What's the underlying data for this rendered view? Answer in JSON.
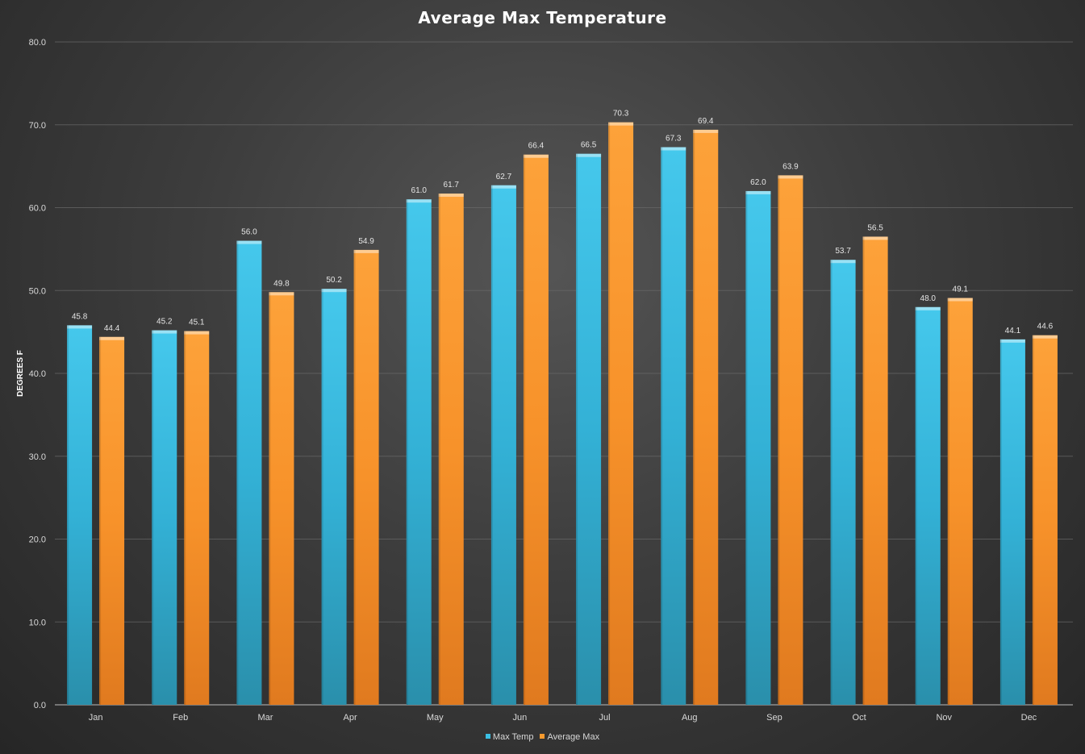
{
  "chart_data": {
    "type": "bar",
    "title": "Average Max Temperature",
    "xlabel": "",
    "ylabel": "DEGREES F",
    "categories": [
      "Jan",
      "Feb",
      "Mar",
      "Apr",
      "May",
      "Jun",
      "Jul",
      "Aug",
      "Sep",
      "Oct",
      "Nov",
      "Dec"
    ],
    "series": [
      {
        "name": "Max Temp",
        "color": "#3bbfe3",
        "values": [
          45.8,
          45.2,
          56.0,
          50.2,
          61.0,
          62.7,
          66.5,
          67.3,
          62.0,
          53.7,
          48.0,
          44.1
        ]
      },
      {
        "name": "Average Max",
        "color": "#f79a2e",
        "values": [
          44.4,
          45.1,
          49.8,
          54.9,
          61.7,
          66.4,
          70.3,
          69.4,
          63.9,
          56.5,
          49.1,
          44.6
        ]
      }
    ],
    "ylim": [
      0,
      80
    ],
    "yticks": [
      "0.0",
      "10.0",
      "20.0",
      "30.0",
      "40.0",
      "50.0",
      "60.0",
      "70.0",
      "80.0"
    ],
    "grid": true,
    "legend_position": "bottom",
    "data_labels": true
  }
}
